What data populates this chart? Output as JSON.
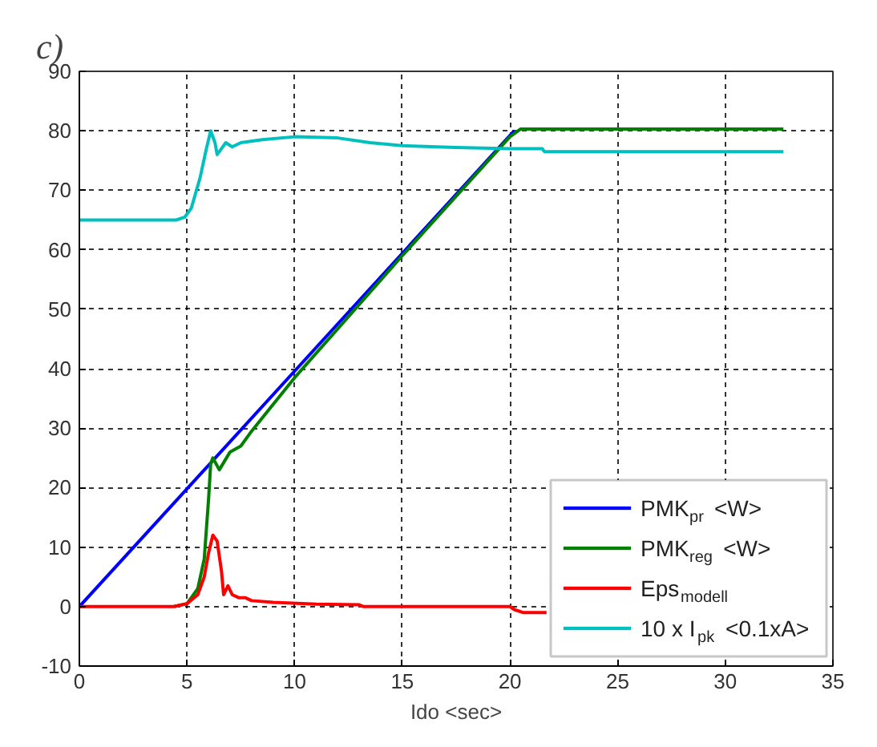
{
  "chart_data": {
    "type": "line",
    "title": "c)",
    "xlabel": "Ido <sec>",
    "xlim": [
      0,
      35
    ],
    "ylim": [
      -10,
      90
    ],
    "xticks": [
      0,
      5,
      10,
      15,
      20,
      25,
      30,
      35
    ],
    "yticks": [
      -10,
      0,
      10,
      20,
      30,
      40,
      50,
      60,
      70,
      80,
      90
    ],
    "grid": true,
    "legend": "bottom right",
    "line_style": "solid",
    "marker": "none",
    "series": [
      {
        "name": "PMK$_{pr}$ <W>",
        "color": "#0000ff",
        "x": [
          0,
          20.2
        ],
        "values": [
          0,
          80
        ]
      },
      {
        "name": "PMK$_{reg}$ <W>",
        "color": "#008000",
        "x": [
          4.4,
          5,
          5.5,
          5.8,
          6.0,
          6.1,
          6.2,
          6.5,
          7,
          7.5,
          8,
          10,
          15,
          20,
          20.5,
          32.7
        ],
        "values": [
          0,
          0.5,
          3,
          8,
          18,
          24,
          25,
          23,
          26,
          27,
          29.5,
          38.5,
          59,
          79,
          80.3,
          80.3
        ]
      },
      {
        "name": "Eps$_{modell}$",
        "color": "#ff0000",
        "x": [
          0,
          4.4,
          5,
          5.5,
          5.8,
          6.0,
          6.2,
          6.4,
          6.6,
          6.7,
          6.9,
          7.1,
          7.4,
          7.7,
          8,
          9,
          11,
          13,
          13.2,
          20,
          20.2,
          20.6,
          21.7
        ],
        "values": [
          0,
          0,
          0.5,
          2,
          5,
          9,
          12,
          11,
          6,
          2,
          3.5,
          2,
          1.5,
          1.5,
          1,
          0.7,
          0.4,
          0.3,
          0,
          0,
          -0.5,
          -1,
          -1
        ]
      },
      {
        "name": "10 x I$_{pk}$ <0.1xA>",
        "color": "#00bfbf",
        "x": [
          0,
          4.5,
          4.9,
          5.2,
          5.6,
          5.9,
          6.1,
          6.3,
          6.4,
          6.8,
          7.1,
          7.5,
          8.5,
          10,
          12,
          13.5,
          15,
          17.5,
          20,
          21.5,
          21.6,
          32.7
        ],
        "values": [
          65,
          65,
          65.5,
          67,
          72,
          77,
          80,
          78,
          76,
          78,
          77.3,
          78,
          78.5,
          79,
          78.8,
          78,
          77.5,
          77.2,
          77,
          77,
          76.5,
          76.5
        ]
      }
    ]
  }
}
